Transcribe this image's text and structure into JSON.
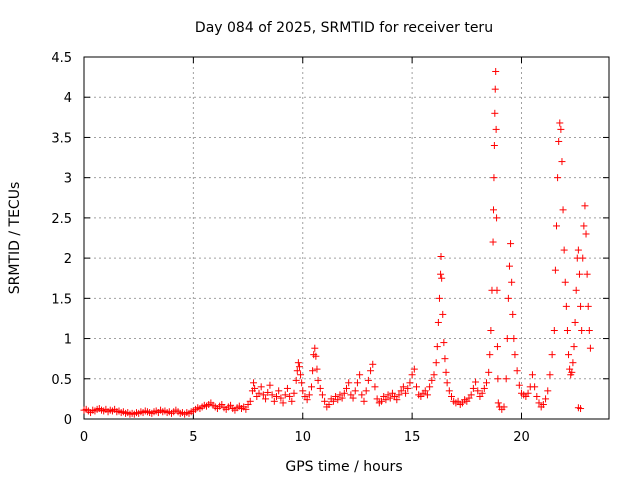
{
  "chart_data": {
    "type": "scatter",
    "title": "Day 084 of 2025, SRMTID for receiver teru",
    "xlabel": "GPS time / hours",
    "ylabel": "SRMTID / TECUs",
    "xlim": [
      0,
      24
    ],
    "ylim": [
      0,
      4.5
    ],
    "grid": true,
    "marker": "plus",
    "marker_color": "#ff0000",
    "x_ticks": [
      0,
      5,
      10,
      15,
      20
    ],
    "x_tick_labels": [
      "0",
      "5",
      "10",
      "15",
      "20"
    ],
    "y_ticks": [
      0,
      0.5,
      1,
      1.5,
      2,
      2.5,
      3,
      3.5,
      4,
      4.5
    ],
    "y_tick_labels": [
      "0",
      "0.5",
      "1",
      "1.5",
      "2",
      "2.5",
      "3",
      "3.5",
      "4",
      "4.5"
    ],
    "series": [
      {
        "name": "SRMTID",
        "points": [
          [
            0.0,
            0.11
          ],
          [
            0.1,
            0.12
          ],
          [
            0.2,
            0.1
          ],
          [
            0.3,
            0.08
          ],
          [
            0.4,
            0.11
          ],
          [
            0.5,
            0.1
          ],
          [
            0.6,
            0.12
          ],
          [
            0.7,
            0.13
          ],
          [
            0.8,
            0.11
          ],
          [
            0.9,
            0.1
          ],
          [
            1.0,
            0.12
          ],
          [
            1.1,
            0.09
          ],
          [
            1.2,
            0.11
          ],
          [
            1.3,
            0.1
          ],
          [
            1.4,
            0.12
          ],
          [
            1.5,
            0.09
          ],
          [
            1.6,
            0.1
          ],
          [
            1.7,
            0.08
          ],
          [
            1.8,
            0.09
          ],
          [
            1.9,
            0.07
          ],
          [
            2.0,
            0.08
          ],
          [
            2.1,
            0.06
          ],
          [
            2.2,
            0.07
          ],
          [
            2.3,
            0.06
          ],
          [
            2.4,
            0.08
          ],
          [
            2.5,
            0.07
          ],
          [
            2.6,
            0.09
          ],
          [
            2.7,
            0.08
          ],
          [
            2.8,
            0.1
          ],
          [
            2.9,
            0.09
          ],
          [
            3.0,
            0.08
          ],
          [
            3.1,
            0.07
          ],
          [
            3.2,
            0.09
          ],
          [
            3.3,
            0.1
          ],
          [
            3.4,
            0.08
          ],
          [
            3.5,
            0.11
          ],
          [
            3.6,
            0.09
          ],
          [
            3.7,
            0.1
          ],
          [
            3.8,
            0.08
          ],
          [
            3.9,
            0.09
          ],
          [
            4.0,
            0.07
          ],
          [
            4.1,
            0.09
          ],
          [
            4.2,
            0.11
          ],
          [
            4.3,
            0.09
          ],
          [
            4.4,
            0.07
          ],
          [
            4.5,
            0.08
          ],
          [
            4.6,
            0.06
          ],
          [
            4.7,
            0.08
          ],
          [
            4.8,
            0.07
          ],
          [
            4.9,
            0.09
          ],
          [
            5.0,
            0.1
          ],
          [
            5.1,
            0.12
          ],
          [
            5.2,
            0.14
          ],
          [
            5.3,
            0.13
          ],
          [
            5.4,
            0.15
          ],
          [
            5.5,
            0.17
          ],
          [
            5.6,
            0.16
          ],
          [
            5.7,
            0.18
          ],
          [
            5.8,
            0.2
          ],
          [
            5.9,
            0.17
          ],
          [
            6.0,
            0.15
          ],
          [
            6.1,
            0.13
          ],
          [
            6.2,
            0.16
          ],
          [
            6.3,
            0.18
          ],
          [
            6.4,
            0.14
          ],
          [
            6.5,
            0.12
          ],
          [
            6.6,
            0.15
          ],
          [
            6.7,
            0.17
          ],
          [
            6.8,
            0.13
          ],
          [
            6.9,
            0.11
          ],
          [
            7.0,
            0.14
          ],
          [
            7.1,
            0.16
          ],
          [
            7.2,
            0.13
          ],
          [
            7.3,
            0.15
          ],
          [
            7.4,
            0.12
          ],
          [
            7.5,
            0.18
          ],
          [
            7.6,
            0.22
          ],
          [
            7.7,
            0.35
          ],
          [
            7.75,
            0.45
          ],
          [
            7.8,
            0.38
          ],
          [
            7.9,
            0.28
          ],
          [
            8.0,
            0.32
          ],
          [
            8.1,
            0.4
          ],
          [
            8.2,
            0.3
          ],
          [
            8.3,
            0.25
          ],
          [
            8.4,
            0.33
          ],
          [
            8.5,
            0.42
          ],
          [
            8.6,
            0.3
          ],
          [
            8.7,
            0.22
          ],
          [
            8.8,
            0.28
          ],
          [
            8.9,
            0.35
          ],
          [
            9.0,
            0.26
          ],
          [
            9.1,
            0.2
          ],
          [
            9.2,
            0.3
          ],
          [
            9.3,
            0.38
          ],
          [
            9.4,
            0.28
          ],
          [
            9.5,
            0.22
          ],
          [
            9.6,
            0.32
          ],
          [
            9.7,
            0.48
          ],
          [
            9.75,
            0.6
          ],
          [
            9.8,
            0.7
          ],
          [
            9.85,
            0.65
          ],
          [
            9.9,
            0.55
          ],
          [
            9.95,
            0.45
          ],
          [
            10.0,
            0.35
          ],
          [
            10.1,
            0.28
          ],
          [
            10.2,
            0.24
          ],
          [
            10.3,
            0.3
          ],
          [
            10.4,
            0.4
          ],
          [
            10.45,
            0.6
          ],
          [
            10.5,
            0.8
          ],
          [
            10.55,
            0.88
          ],
          [
            10.6,
            0.78
          ],
          [
            10.65,
            0.62
          ],
          [
            10.7,
            0.48
          ],
          [
            10.8,
            0.38
          ],
          [
            10.9,
            0.3
          ],
          [
            11.0,
            0.22
          ],
          [
            11.1,
            0.15
          ],
          [
            11.2,
            0.18
          ],
          [
            11.3,
            0.25
          ],
          [
            11.4,
            0.22
          ],
          [
            11.5,
            0.28
          ],
          [
            11.6,
            0.24
          ],
          [
            11.7,
            0.3
          ],
          [
            11.8,
            0.26
          ],
          [
            11.9,
            0.32
          ],
          [
            12.0,
            0.38
          ],
          [
            12.1,
            0.45
          ],
          [
            12.2,
            0.3
          ],
          [
            12.3,
            0.26
          ],
          [
            12.4,
            0.35
          ],
          [
            12.5,
            0.45
          ],
          [
            12.6,
            0.55
          ],
          [
            12.7,
            0.3
          ],
          [
            12.8,
            0.22
          ],
          [
            12.9,
            0.35
          ],
          [
            13.0,
            0.48
          ],
          [
            13.1,
            0.6
          ],
          [
            13.2,
            0.68
          ],
          [
            13.3,
            0.4
          ],
          [
            13.4,
            0.25
          ],
          [
            13.5,
            0.2
          ],
          [
            13.6,
            0.22
          ],
          [
            13.7,
            0.28
          ],
          [
            13.8,
            0.24
          ],
          [
            13.9,
            0.3
          ],
          [
            14.0,
            0.26
          ],
          [
            14.1,
            0.32
          ],
          [
            14.2,
            0.28
          ],
          [
            14.3,
            0.24
          ],
          [
            14.4,
            0.3
          ],
          [
            14.5,
            0.35
          ],
          [
            14.6,
            0.4
          ],
          [
            14.7,
            0.32
          ],
          [
            14.8,
            0.38
          ],
          [
            14.9,
            0.45
          ],
          [
            15.0,
            0.55
          ],
          [
            15.1,
            0.62
          ],
          [
            15.2,
            0.4
          ],
          [
            15.3,
            0.3
          ],
          [
            15.4,
            0.28
          ],
          [
            15.5,
            0.32
          ],
          [
            15.6,
            0.35
          ],
          [
            15.7,
            0.3
          ],
          [
            15.8,
            0.4
          ],
          [
            15.9,
            0.48
          ],
          [
            16.0,
            0.55
          ],
          [
            16.1,
            0.7
          ],
          [
            16.15,
            0.9
          ],
          [
            16.2,
            1.2
          ],
          [
            16.25,
            1.5
          ],
          [
            16.3,
            1.8
          ],
          [
            16.32,
            2.02
          ],
          [
            16.35,
            1.75
          ],
          [
            16.4,
            1.3
          ],
          [
            16.45,
            0.95
          ],
          [
            16.5,
            0.75
          ],
          [
            16.55,
            0.58
          ],
          [
            16.6,
            0.45
          ],
          [
            16.7,
            0.35
          ],
          [
            16.8,
            0.28
          ],
          [
            16.9,
            0.22
          ],
          [
            17.0,
            0.2
          ],
          [
            17.1,
            0.22
          ],
          [
            17.2,
            0.18
          ],
          [
            17.3,
            0.2
          ],
          [
            17.4,
            0.24
          ],
          [
            17.5,
            0.22
          ],
          [
            17.6,
            0.26
          ],
          [
            17.7,
            0.3
          ],
          [
            17.8,
            0.38
          ],
          [
            17.9,
            0.46
          ],
          [
            18.0,
            0.35
          ],
          [
            18.1,
            0.28
          ],
          [
            18.2,
            0.32
          ],
          [
            18.3,
            0.38
          ],
          [
            18.4,
            0.45
          ],
          [
            18.5,
            0.58
          ],
          [
            18.55,
            0.8
          ],
          [
            18.6,
            1.1
          ],
          [
            18.65,
            1.6
          ],
          [
            18.7,
            2.2
          ],
          [
            18.72,
            2.6
          ],
          [
            18.74,
            3.0
          ],
          [
            18.76,
            3.4
          ],
          [
            18.78,
            3.8
          ],
          [
            18.8,
            4.1
          ],
          [
            18.82,
            4.32
          ],
          [
            18.84,
            3.6
          ],
          [
            18.86,
            2.5
          ],
          [
            18.88,
            1.6
          ],
          [
            18.9,
            0.9
          ],
          [
            18.92,
            0.5
          ],
          [
            18.94,
            0.2
          ],
          [
            19.0,
            0.15
          ],
          [
            19.1,
            0.12
          ],
          [
            19.2,
            0.15
          ],
          [
            19.3,
            0.5
          ],
          [
            19.35,
            1.0
          ],
          [
            19.4,
            1.5
          ],
          [
            19.45,
            1.9
          ],
          [
            19.5,
            2.18
          ],
          [
            19.55,
            1.7
          ],
          [
            19.6,
            1.3
          ],
          [
            19.65,
            1.0
          ],
          [
            19.7,
            0.8
          ],
          [
            19.8,
            0.6
          ],
          [
            19.9,
            0.42
          ],
          [
            20.0,
            0.32
          ],
          [
            20.1,
            0.3
          ],
          [
            20.2,
            0.28
          ],
          [
            20.3,
            0.32
          ],
          [
            20.4,
            0.4
          ],
          [
            20.5,
            0.55
          ],
          [
            20.6,
            0.4
          ],
          [
            20.7,
            0.28
          ],
          [
            20.8,
            0.2
          ],
          [
            20.9,
            0.15
          ],
          [
            21.0,
            0.18
          ],
          [
            21.1,
            0.25
          ],
          [
            21.2,
            0.35
          ],
          [
            21.3,
            0.55
          ],
          [
            21.4,
            0.8
          ],
          [
            21.5,
            1.1
          ],
          [
            21.55,
            1.85
          ],
          [
            21.6,
            2.4
          ],
          [
            21.65,
            3.0
          ],
          [
            21.7,
            3.45
          ],
          [
            21.75,
            3.68
          ],
          [
            21.8,
            3.6
          ],
          [
            21.85,
            3.2
          ],
          [
            21.9,
            2.6
          ],
          [
            21.95,
            2.1
          ],
          [
            22.0,
            1.7
          ],
          [
            22.05,
            1.4
          ],
          [
            22.1,
            1.1
          ],
          [
            22.15,
            0.8
          ],
          [
            22.2,
            0.62
          ],
          [
            22.25,
            0.55
          ],
          [
            22.3,
            0.58
          ],
          [
            22.35,
            0.7
          ],
          [
            22.4,
            0.9
          ],
          [
            22.45,
            1.2
          ],
          [
            22.5,
            1.6
          ],
          [
            22.55,
            2.0
          ],
          [
            22.6,
            2.1
          ],
          [
            22.65,
            1.8
          ],
          [
            22.7,
            1.4
          ],
          [
            22.75,
            1.1
          ],
          [
            22.8,
            2.0
          ],
          [
            22.85,
            2.4
          ],
          [
            22.9,
            2.65
          ],
          [
            22.95,
            2.3
          ],
          [
            23.0,
            1.8
          ],
          [
            23.05,
            1.4
          ],
          [
            23.1,
            1.1
          ],
          [
            23.15,
            0.88
          ],
          [
            22.6,
            0.14
          ],
          [
            22.7,
            0.13
          ]
        ]
      }
    ]
  }
}
